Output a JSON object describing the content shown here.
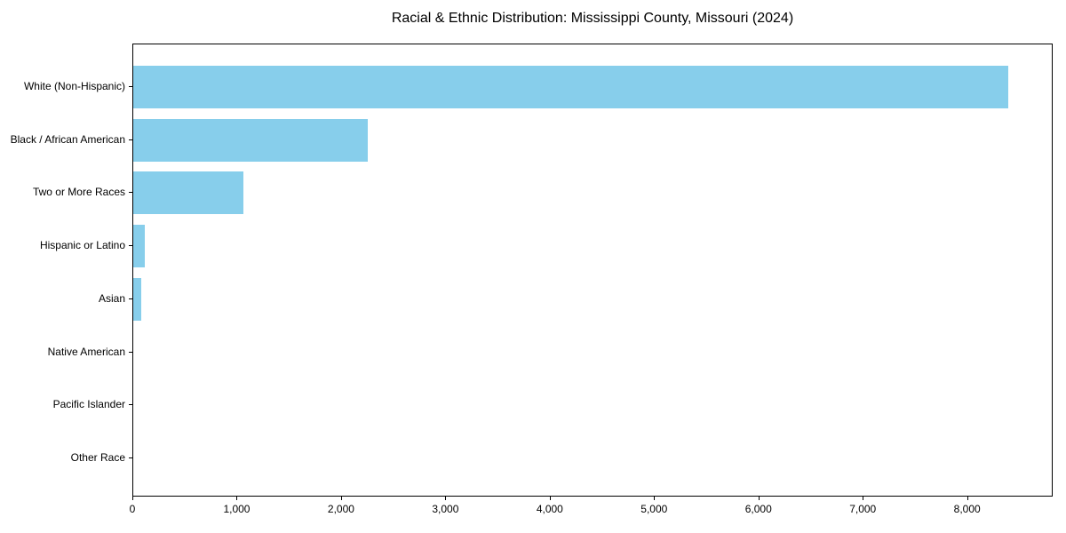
{
  "chart_data": {
    "type": "bar",
    "orientation": "horizontal",
    "title": "Racial & Ethnic Distribution: Mississippi County, Missouri (2024)",
    "categories": [
      "White (Non-Hispanic)",
      "Black / African American",
      "Two or More Races",
      "Hispanic or Latino",
      "Asian",
      "Native American",
      "Pacific Islander",
      "Other Race"
    ],
    "values": [
      8400,
      2250,
      1060,
      110,
      75,
      0,
      0,
      0
    ],
    "xlabel": "",
    "ylabel": "",
    "xlim": [
      0,
      8820
    ],
    "x_tick_values": [
      0,
      1000,
      2000,
      3000,
      4000,
      5000,
      6000,
      7000,
      8000
    ],
    "x_tick_labels": [
      "0",
      "1,000",
      "2,000",
      "3,000",
      "4,000",
      "5,000",
      "6,000",
      "7,000",
      "8,000"
    ],
    "bar_color": "#87CEEB",
    "text_color": "#000000",
    "grid": false,
    "legend": "none",
    "first_category_position": "top"
  }
}
